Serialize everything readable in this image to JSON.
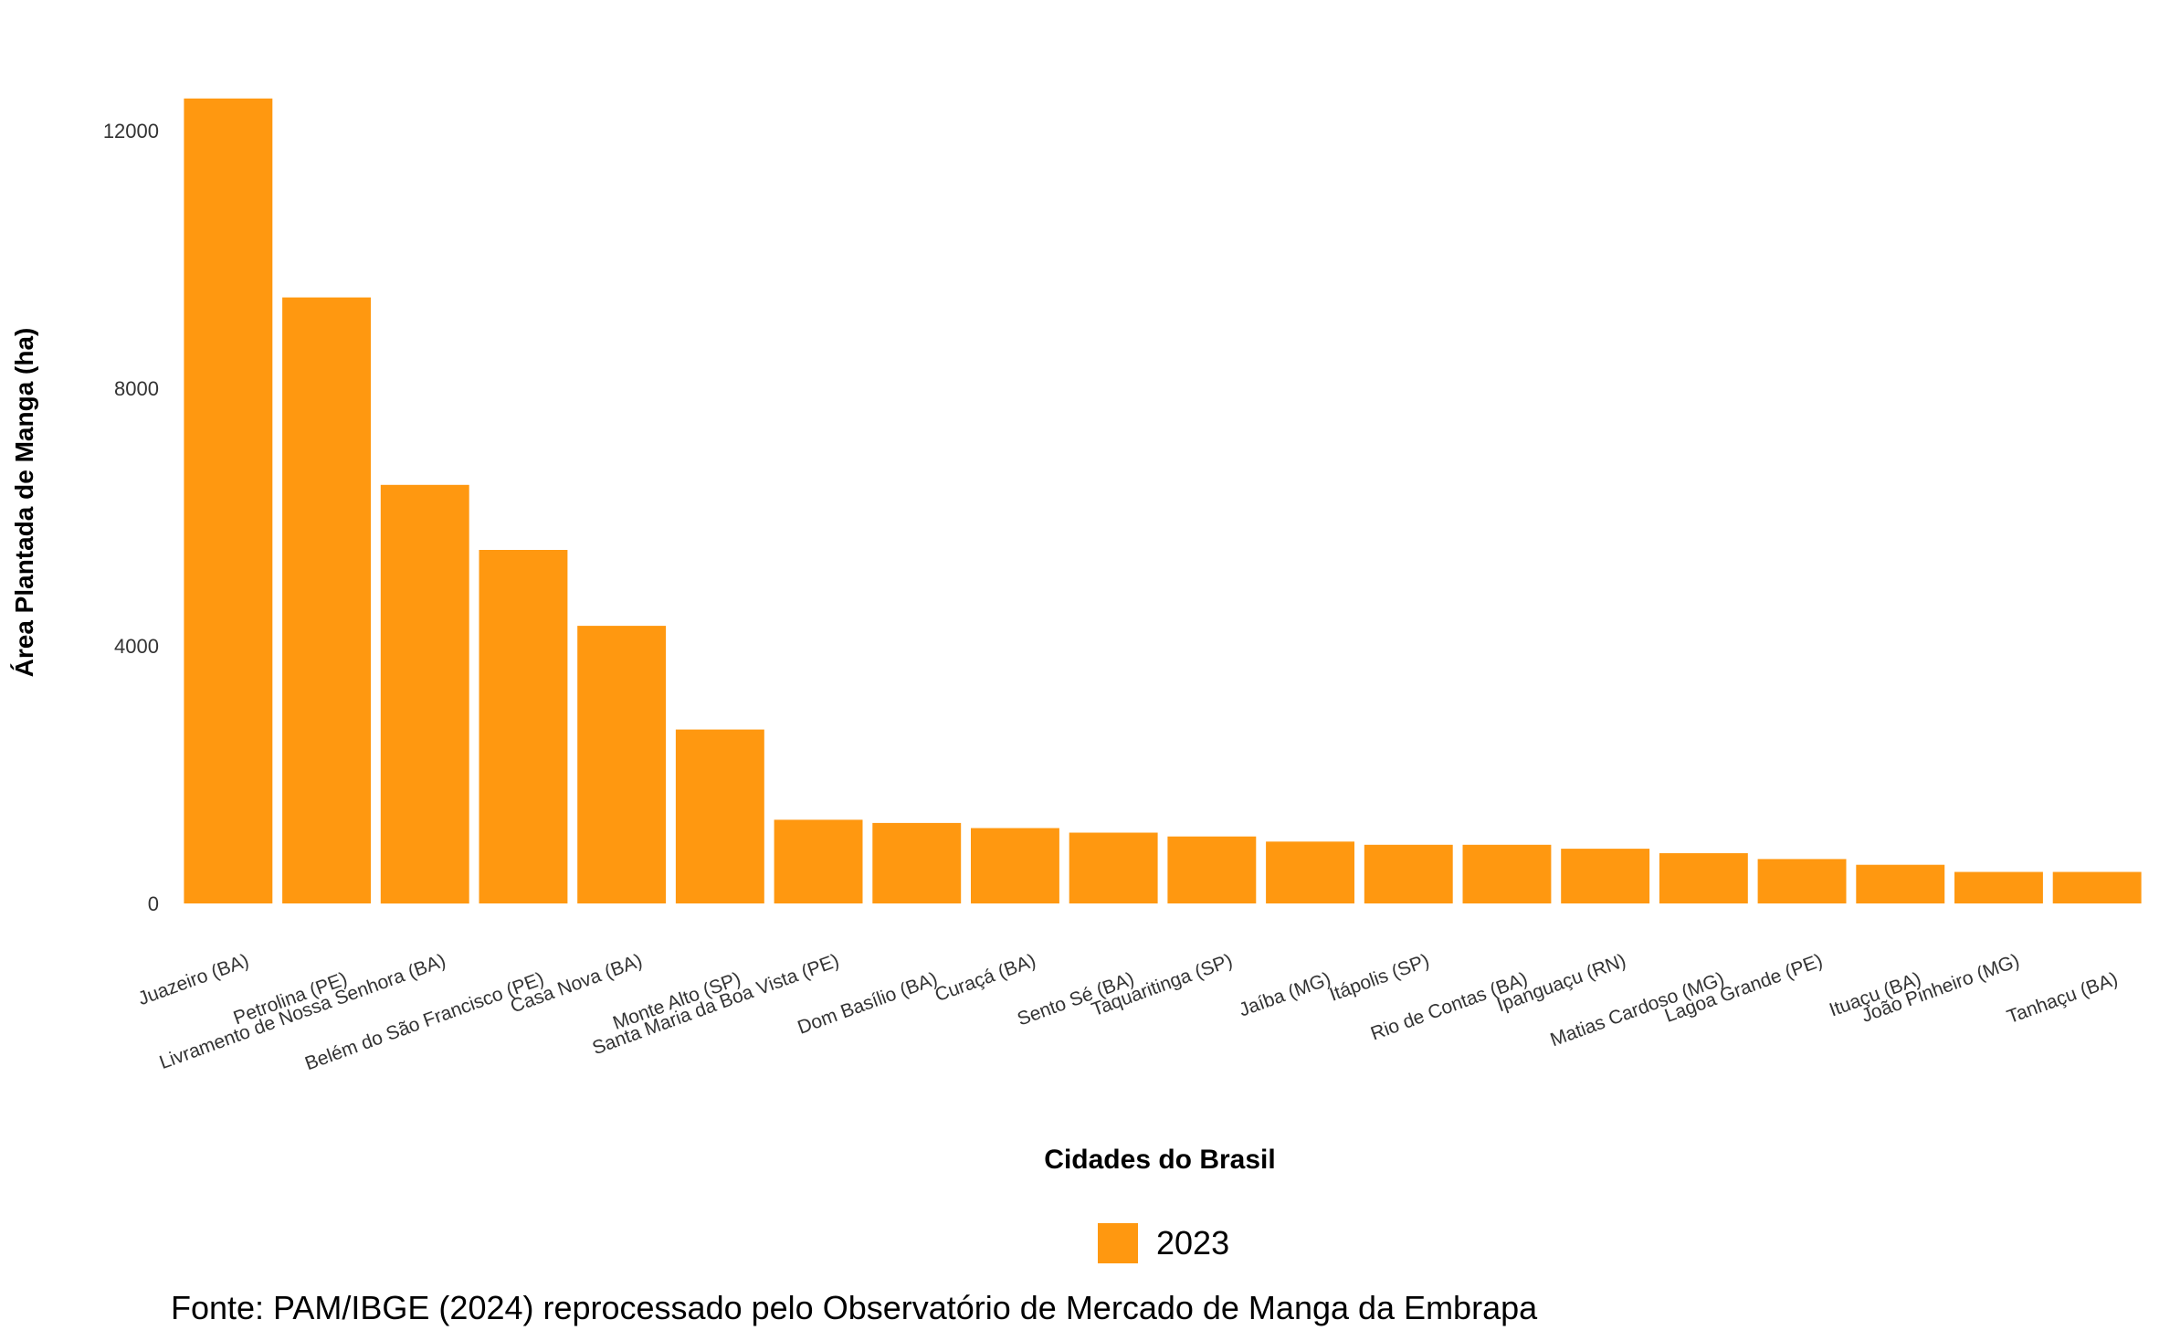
{
  "chart_data": {
    "type": "bar",
    "title": "",
    "xlabel": "Cidades do Brasil",
    "ylabel": "Área Plantada de Manga (ha)",
    "ylim": [
      0,
      12500
    ],
    "yticks": [
      0,
      4000,
      8000,
      12000
    ],
    "grid": false,
    "legend_position": "bottom",
    "bar_color": "#FF9810",
    "categories": [
      "Juazeiro (BA)",
      "Petrolina (PE)",
      "Livramento de Nossa Senhora (BA)",
      "Belém do São Francisco (PE)",
      "Casa Nova (BA)",
      "Monte Alto (SP)",
      "Santa Maria da Boa Vista (PE)",
      "Dom Basílio (BA)",
      "Curaçá (BA)",
      "Sento Sé (BA)",
      "Taquaritinga (SP)",
      "Jaíba (MG)",
      "Itápolis (SP)",
      "Rio de Contas (BA)",
      "Ipanguaçu (RN)",
      "Matias Cardoso (MG)",
      "Lagoa Grande (PE)",
      "Ituaçu (BA)",
      "João Pinheiro (MG)",
      "Tanhaçu (BA)"
    ],
    "series": [
      {
        "name": "2023",
        "values": [
          12500,
          9410,
          6500,
          5490,
          4310,
          2700,
          1300,
          1250,
          1170,
          1100,
          1040,
          960,
          910,
          910,
          850,
          780,
          690,
          600,
          490,
          490
        ]
      }
    ]
  },
  "source": "Fonte: PAM/IBGE (2024) reprocessado pelo Observatório de Mercado de Manga da Embrapa"
}
